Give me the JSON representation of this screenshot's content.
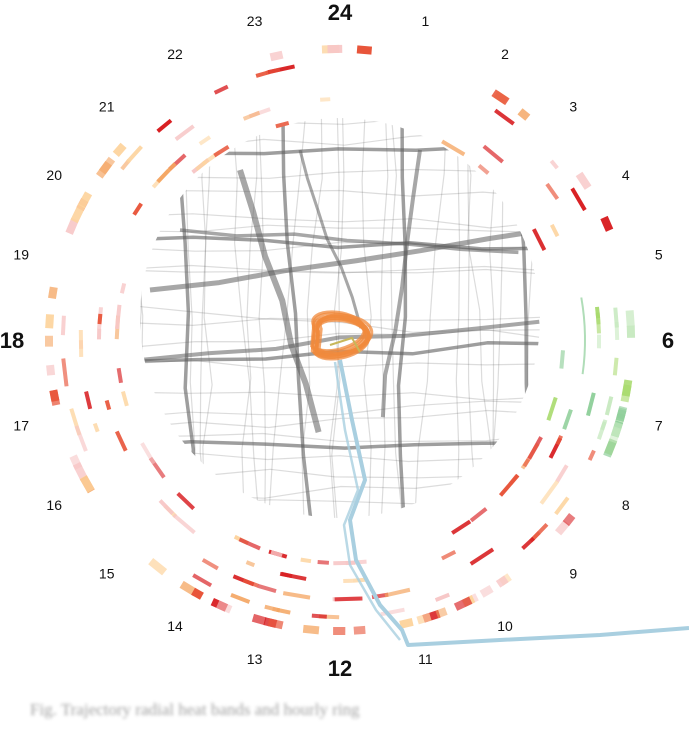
{
  "figure": {
    "hour_labels": [
      "24",
      "1",
      "2",
      "3",
      "4",
      "5",
      "6",
      "7",
      "8",
      "9",
      "10",
      "11",
      "12",
      "13",
      "14",
      "15",
      "16",
      "17",
      "18",
      "19",
      "20",
      "21",
      "22",
      "23"
    ],
    "major_hours": [
      "24",
      "6",
      "12",
      "18"
    ],
    "colors": {
      "road": "#5e5e5e",
      "trajectory": "#a9cfe0",
      "loop": "#f08a3c",
      "heat_palette": [
        "#d7191c",
        "#e8553a",
        "#f4a460",
        "#fdd49e",
        "#f7c6c6",
        "#a6d96a",
        "#8fcf9a",
        "#c7e9c0"
      ]
    },
    "caption_text": "Fig. Trajectory radial heat bands and hourly ring"
  }
}
